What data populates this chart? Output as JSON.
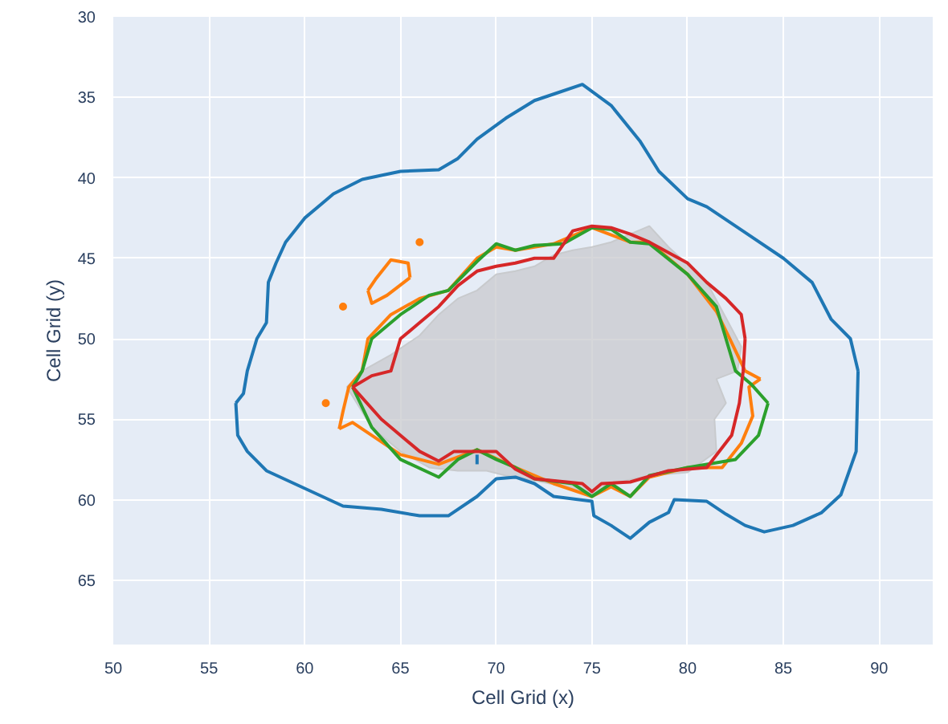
{
  "chart_data": {
    "type": "line",
    "xlabel": "Cell Grid (x)",
    "ylabel": "Cell Grid (y)",
    "xlim": [
      50,
      92.8
    ],
    "ylim": [
      69,
      30
    ],
    "xticks": [
      50,
      55,
      60,
      65,
      70,
      75,
      80,
      85,
      90
    ],
    "yticks": [
      30,
      35,
      40,
      45,
      50,
      55,
      60,
      65
    ],
    "grid": true,
    "series": [
      {
        "type": "area",
        "color": "#c8cacd",
        "x": [
          62.2,
          63,
          64.5,
          66,
          67,
          68,
          69,
          70,
          71,
          72,
          73,
          74,
          75,
          76,
          77,
          78,
          79,
          81,
          82,
          82.8,
          82.6,
          81.5,
          82,
          81.4,
          81.5,
          80,
          78,
          76,
          75,
          74,
          72,
          70.5,
          69.5,
          68,
          66.5,
          65,
          63.5,
          62.2
        ],
        "values": [
          53,
          52,
          51,
          49.8,
          48.5,
          47.5,
          47,
          46,
          45.8,
          45.5,
          44.8,
          44.5,
          44.3,
          44,
          43.5,
          43,
          44.3,
          46.5,
          48.7,
          50.5,
          52,
          52.5,
          54,
          55,
          57,
          58.3,
          58.5,
          59,
          59.8,
          59.3,
          58.8,
          58.5,
          58.2,
          58.2,
          58,
          57,
          55.5,
          53
        ]
      },
      {
        "color": "#1f77b4",
        "x": [
          56.4,
          56.8,
          57,
          57.5,
          58,
          58.1,
          58.5,
          59,
          60,
          61.5,
          63,
          65,
          67,
          68,
          69,
          70.5,
          72,
          73,
          74.5,
          76,
          77.5,
          78.5,
          80,
          81,
          83,
          85,
          86.5,
          87.5,
          88.5,
          88.9,
          null,
          56.4,
          56.5,
          57,
          58,
          60,
          62,
          64,
          66,
          67.5,
          69,
          70,
          71,
          72,
          73,
          75,
          75.1,
          76,
          77,
          78,
          79,
          79.3,
          81,
          82,
          83,
          84,
          85.5,
          87,
          88,
          88.8,
          88.9,
          null,
          69,
          69
        ],
        "values": [
          54,
          53.4,
          52,
          50,
          49,
          46.5,
          45.3,
          44,
          42.5,
          41,
          40.1,
          39.6,
          39.5,
          38.8,
          37.6,
          36.3,
          35.2,
          34.8,
          34.2,
          35.5,
          37.7,
          39.6,
          41.3,
          41.8,
          43.4,
          45,
          46.5,
          48.8,
          50,
          52,
          null,
          54,
          56,
          57,
          58.2,
          59.3,
          60.4,
          60.6,
          61,
          61,
          59.8,
          58.7,
          58.6,
          59,
          59.8,
          60.1,
          61,
          61.6,
          62.4,
          61.4,
          60.8,
          60,
          60.1,
          60.9,
          61.6,
          62,
          61.6,
          60.8,
          59.7,
          57,
          52,
          null,
          57.2,
          57.8
        ]
      },
      {
        "color": "#ff7f0e",
        "x": [
          61.8,
          62,
          62.3,
          63,
          63.3,
          64.5,
          66,
          67.5,
          69,
          70,
          71,
          73,
          75,
          77,
          78,
          80,
          81.5,
          82.2,
          83,
          83.8,
          null,
          61.8,
          62.5,
          63.5,
          65,
          67,
          69,
          71,
          73,
          75,
          76,
          77,
          78,
          80,
          81.8,
          82.8,
          83.4,
          83.2,
          83.8,
          null,
          63.3,
          63.7,
          64.5,
          65.4,
          65.5,
          null,
          63.3,
          63.5,
          64.3,
          65.5
        ],
        "values": [
          55.6,
          54.5,
          53,
          52,
          50,
          48.5,
          47.5,
          47,
          45,
          44.3,
          44.5,
          44.1,
          43.1,
          44,
          44,
          46,
          48.3,
          50,
          52,
          52.5,
          null,
          55.6,
          55.2,
          56,
          57.2,
          57.8,
          56.9,
          58,
          59,
          59.8,
          59.2,
          59.8,
          58.6,
          58,
          58,
          56.5,
          54.8,
          53,
          52.5,
          null,
          47,
          46.3,
          45.1,
          45.3,
          46.2,
          null,
          47,
          47.8,
          47.3,
          46.2
        ]
      },
      {
        "type": "scatter",
        "marker": "circle",
        "color": "#ff7f0e",
        "x": [
          61.1,
          62,
          66
        ],
        "values": [
          54,
          48,
          44
        ]
      },
      {
        "color": "#2ca02c",
        "x": [
          62.5,
          63,
          63.5,
          65,
          66.5,
          67.5,
          69,
          70,
          71,
          72,
          73.5,
          75,
          76,
          77,
          78,
          80,
          81.5,
          82,
          82.5,
          83.3,
          84.2,
          null,
          62.5,
          63.5,
          65,
          67,
          68,
          69,
          70,
          71,
          72,
          74,
          75,
          76,
          77,
          78,
          80,
          82.5,
          83.7,
          84.2
        ],
        "values": [
          53,
          52,
          50,
          48.5,
          47.3,
          47,
          45.2,
          44.1,
          44.5,
          44.2,
          44.1,
          43.1,
          43.2,
          44,
          44.1,
          46,
          48,
          50,
          52,
          52.8,
          54,
          null,
          53,
          55.5,
          57.5,
          58.6,
          57.5,
          56.9,
          57.5,
          58,
          58.7,
          59,
          59.8,
          59,
          59.8,
          58.5,
          58,
          57.5,
          56,
          54
        ]
      },
      {
        "color": "#d62728",
        "x": [
          62.5,
          63.5,
          64.5,
          65,
          66,
          67,
          68,
          69,
          70,
          71,
          72,
          73,
          74,
          75,
          76,
          77,
          78,
          80,
          81,
          82,
          82.8,
          83,
          null,
          62.5,
          64,
          66,
          67,
          67.8,
          69,
          70,
          71,
          72,
          74.5,
          75,
          75.5,
          77,
          79,
          81,
          82.3,
          82.7,
          82.9,
          83
        ],
        "values": [
          53,
          52.3,
          52,
          50,
          49,
          48,
          46.7,
          45.8,
          45.5,
          45.3,
          45,
          45,
          43.3,
          43,
          43.1,
          43.5,
          44,
          45.3,
          46.5,
          47.5,
          48.5,
          50,
          null,
          53,
          55,
          57,
          57.6,
          57,
          57,
          57,
          58.1,
          58.7,
          59,
          59.5,
          59,
          58.9,
          58.2,
          58,
          56,
          54,
          52,
          50
        ]
      }
    ]
  }
}
